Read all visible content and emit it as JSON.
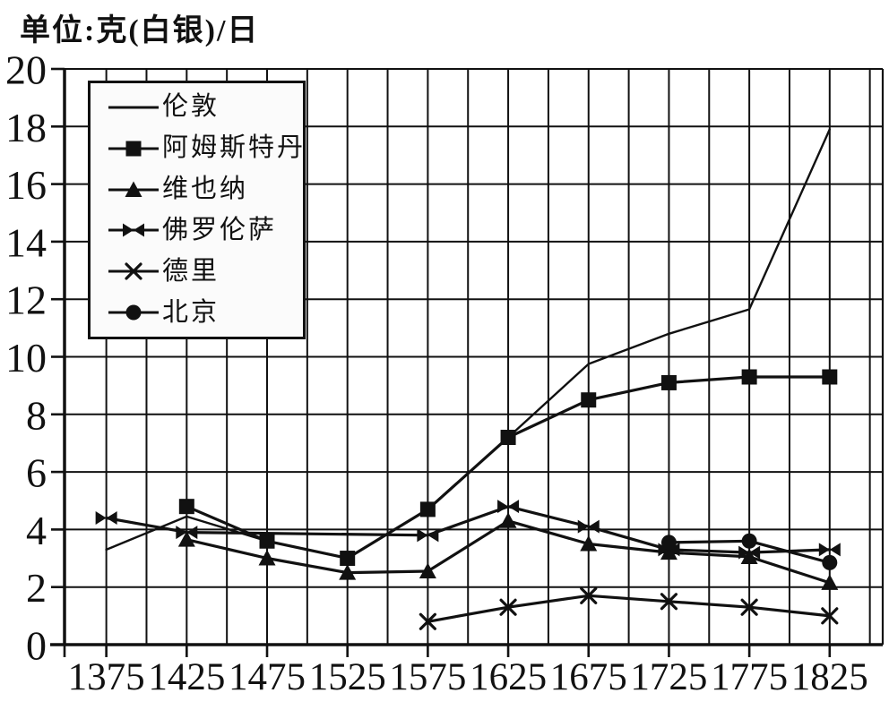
{
  "unit_label": "单位:克(白银)/日",
  "colors": {
    "ink": "#111111",
    "legend_bg": "#fbfbfb",
    "background": "#ffffff"
  },
  "chart_data": {
    "type": "line",
    "title": "单位:克(白银)/日",
    "xlabel": "",
    "ylabel": "克(白银)/日",
    "ylim": [
      0,
      20
    ],
    "xlim": [
      1349,
      1858
    ],
    "x_ticks": [
      1375,
      1425,
      1475,
      1525,
      1575,
      1625,
      1675,
      1725,
      1775,
      1825
    ],
    "y_ticks": [
      0,
      2,
      4,
      6,
      8,
      10,
      12,
      14,
      16,
      18,
      20
    ],
    "grid": {
      "visible": true,
      "x_step_years": 25,
      "y_step": 2
    },
    "legend_position": "top-left",
    "series": [
      {
        "key": "london",
        "name": "伦敦",
        "marker": "none",
        "points": [
          [
            1375,
            3.3
          ],
          [
            1425,
            4.45
          ],
          [
            1475,
            3.6
          ],
          [
            1525,
            3.0
          ],
          [
            1575,
            4.7
          ],
          [
            1625,
            7.2
          ],
          [
            1675,
            9.75
          ],
          [
            1725,
            10.8
          ],
          [
            1775,
            11.65
          ],
          [
            1825,
            17.9
          ]
        ]
      },
      {
        "key": "amsterdam",
        "name": "阿姆斯特丹",
        "marker": "square",
        "points": [
          [
            1425,
            4.8
          ],
          [
            1475,
            3.6
          ],
          [
            1525,
            3.0
          ],
          [
            1575,
            4.7
          ],
          [
            1625,
            7.2
          ],
          [
            1675,
            8.5
          ],
          [
            1725,
            9.1
          ],
          [
            1775,
            9.3
          ],
          [
            1825,
            9.3
          ]
        ]
      },
      {
        "key": "vienna",
        "name": "维也纳",
        "marker": "triangle",
        "points": [
          [
            1425,
            3.65
          ],
          [
            1475,
            3.0
          ],
          [
            1525,
            2.5
          ],
          [
            1575,
            2.55
          ],
          [
            1625,
            4.3
          ],
          [
            1675,
            3.5
          ],
          [
            1725,
            3.2
          ],
          [
            1775,
            3.05
          ],
          [
            1825,
            2.15
          ]
        ]
      },
      {
        "key": "florence",
        "name": "佛罗伦萨",
        "marker": "bowtie",
        "points": [
          [
            1375,
            4.4
          ],
          [
            1425,
            3.9
          ],
          [
            1575,
            3.8
          ],
          [
            1625,
            4.8
          ],
          [
            1675,
            4.1
          ],
          [
            1725,
            3.3
          ],
          [
            1775,
            3.2
          ],
          [
            1825,
            3.3
          ]
        ]
      },
      {
        "key": "delhi",
        "name": "德里",
        "marker": "cross",
        "points": [
          [
            1575,
            0.8
          ],
          [
            1625,
            1.3
          ],
          [
            1675,
            1.7
          ],
          [
            1725,
            1.5
          ],
          [
            1775,
            1.3
          ],
          [
            1825,
            1.0
          ]
        ]
      },
      {
        "key": "beijing",
        "name": "北京",
        "marker": "circle",
        "points": [
          [
            1725,
            3.55
          ],
          [
            1775,
            3.6
          ],
          [
            1825,
            2.85
          ]
        ]
      }
    ]
  }
}
